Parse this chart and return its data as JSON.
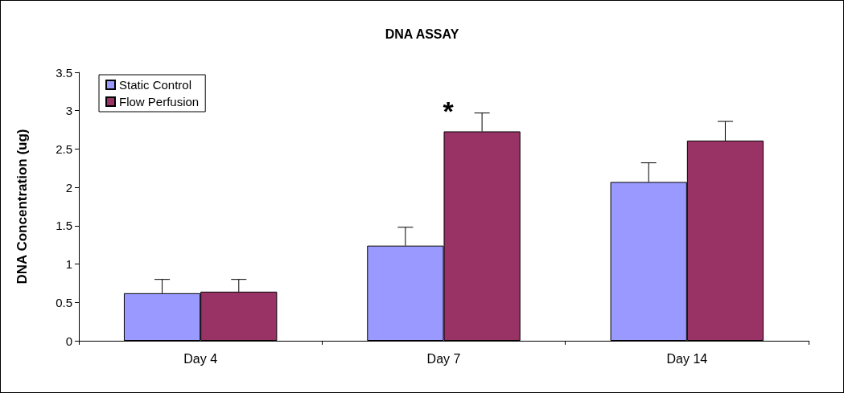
{
  "chart_data": {
    "type": "bar",
    "title": "DNA ASSAY",
    "ylabel": "DNA Concentration (ug)",
    "categories": [
      "Day 4",
      "Day 7",
      "Day 14"
    ],
    "series": [
      {
        "name": "Static Control",
        "color": "#9999ff",
        "values": [
          0.62,
          1.24,
          2.07
        ],
        "errors": [
          [
            0.62,
            0.8
          ],
          [
            1.24,
            1.48
          ],
          [
            2.07,
            2.32
          ]
        ]
      },
      {
        "name": "Flow Perfusion",
        "color": "#993366",
        "values": [
          0.64,
          2.73,
          2.61
        ],
        "errors": [
          [
            0.64,
            0.8
          ],
          [
            2.73,
            2.97
          ],
          [
            2.61,
            2.86
          ]
        ]
      }
    ],
    "ylim": [
      0,
      3.5
    ],
    "yticks": [
      0,
      0.5,
      1,
      1.5,
      2,
      2.5,
      3,
      3.5
    ],
    "grid": false,
    "legend": "top left",
    "annotations": [
      "*"
    ]
  }
}
